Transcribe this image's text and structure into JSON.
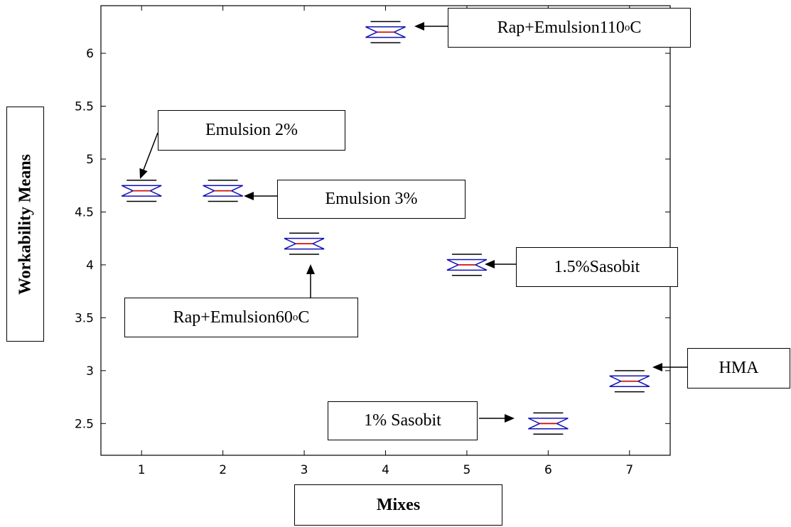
{
  "chart_data": {
    "type": "box",
    "xlabel": "Mixes",
    "ylabel": "Workability Means",
    "x_ticks": [
      "1",
      "2",
      "3",
      "4",
      "5",
      "6",
      "7"
    ],
    "y_ticks": [
      "2.5",
      "3",
      "3.5",
      "4",
      "4.5",
      "5",
      "5.5",
      "6"
    ],
    "xlim": [
      0.5,
      7.5
    ],
    "ylim": [
      2.2,
      6.45
    ],
    "grid": false,
    "series": [
      {
        "x": 1,
        "median": 4.7,
        "q1": 4.65,
        "q3": 4.75,
        "min": 4.6,
        "max": 4.8
      },
      {
        "x": 2,
        "median": 4.7,
        "q1": 4.65,
        "q3": 4.75,
        "min": 4.6,
        "max": 4.8
      },
      {
        "x": 3,
        "median": 4.2,
        "q1": 4.15,
        "q3": 4.25,
        "min": 4.1,
        "max": 4.3
      },
      {
        "x": 4,
        "median": 6.2,
        "q1": 6.15,
        "q3": 6.25,
        "min": 6.1,
        "max": 6.3
      },
      {
        "x": 5,
        "median": 4.0,
        "q1": 3.95,
        "q3": 4.05,
        "min": 3.9,
        "max": 4.1
      },
      {
        "x": 6,
        "median": 2.5,
        "q1": 2.45,
        "q3": 2.55,
        "min": 2.4,
        "max": 2.6
      },
      {
        "x": 7,
        "median": 2.9,
        "q1": 2.85,
        "q3": 2.95,
        "min": 2.8,
        "max": 3.0
      }
    ],
    "annotations": [
      {
        "id": "a1",
        "main": "Emulsion 2%"
      },
      {
        "id": "a2",
        "main": "Emulsion 3%"
      },
      {
        "id": "a3",
        "main": "Rap+Emulsion60",
        "sup": "o",
        "tail": "C"
      },
      {
        "id": "a4",
        "main": "Rap+Emulsion110",
        "sup": "o",
        "tail": "C"
      },
      {
        "id": "a5",
        "main": "1.5%Sasobit"
      },
      {
        "id": "a6",
        "main": "1% Sasobit"
      },
      {
        "id": "a7",
        "main": "HMA"
      }
    ],
    "colors": {
      "box": "#1010b8",
      "median": "#d01010",
      "whisker": "#000000",
      "axis": "#000000"
    }
  }
}
